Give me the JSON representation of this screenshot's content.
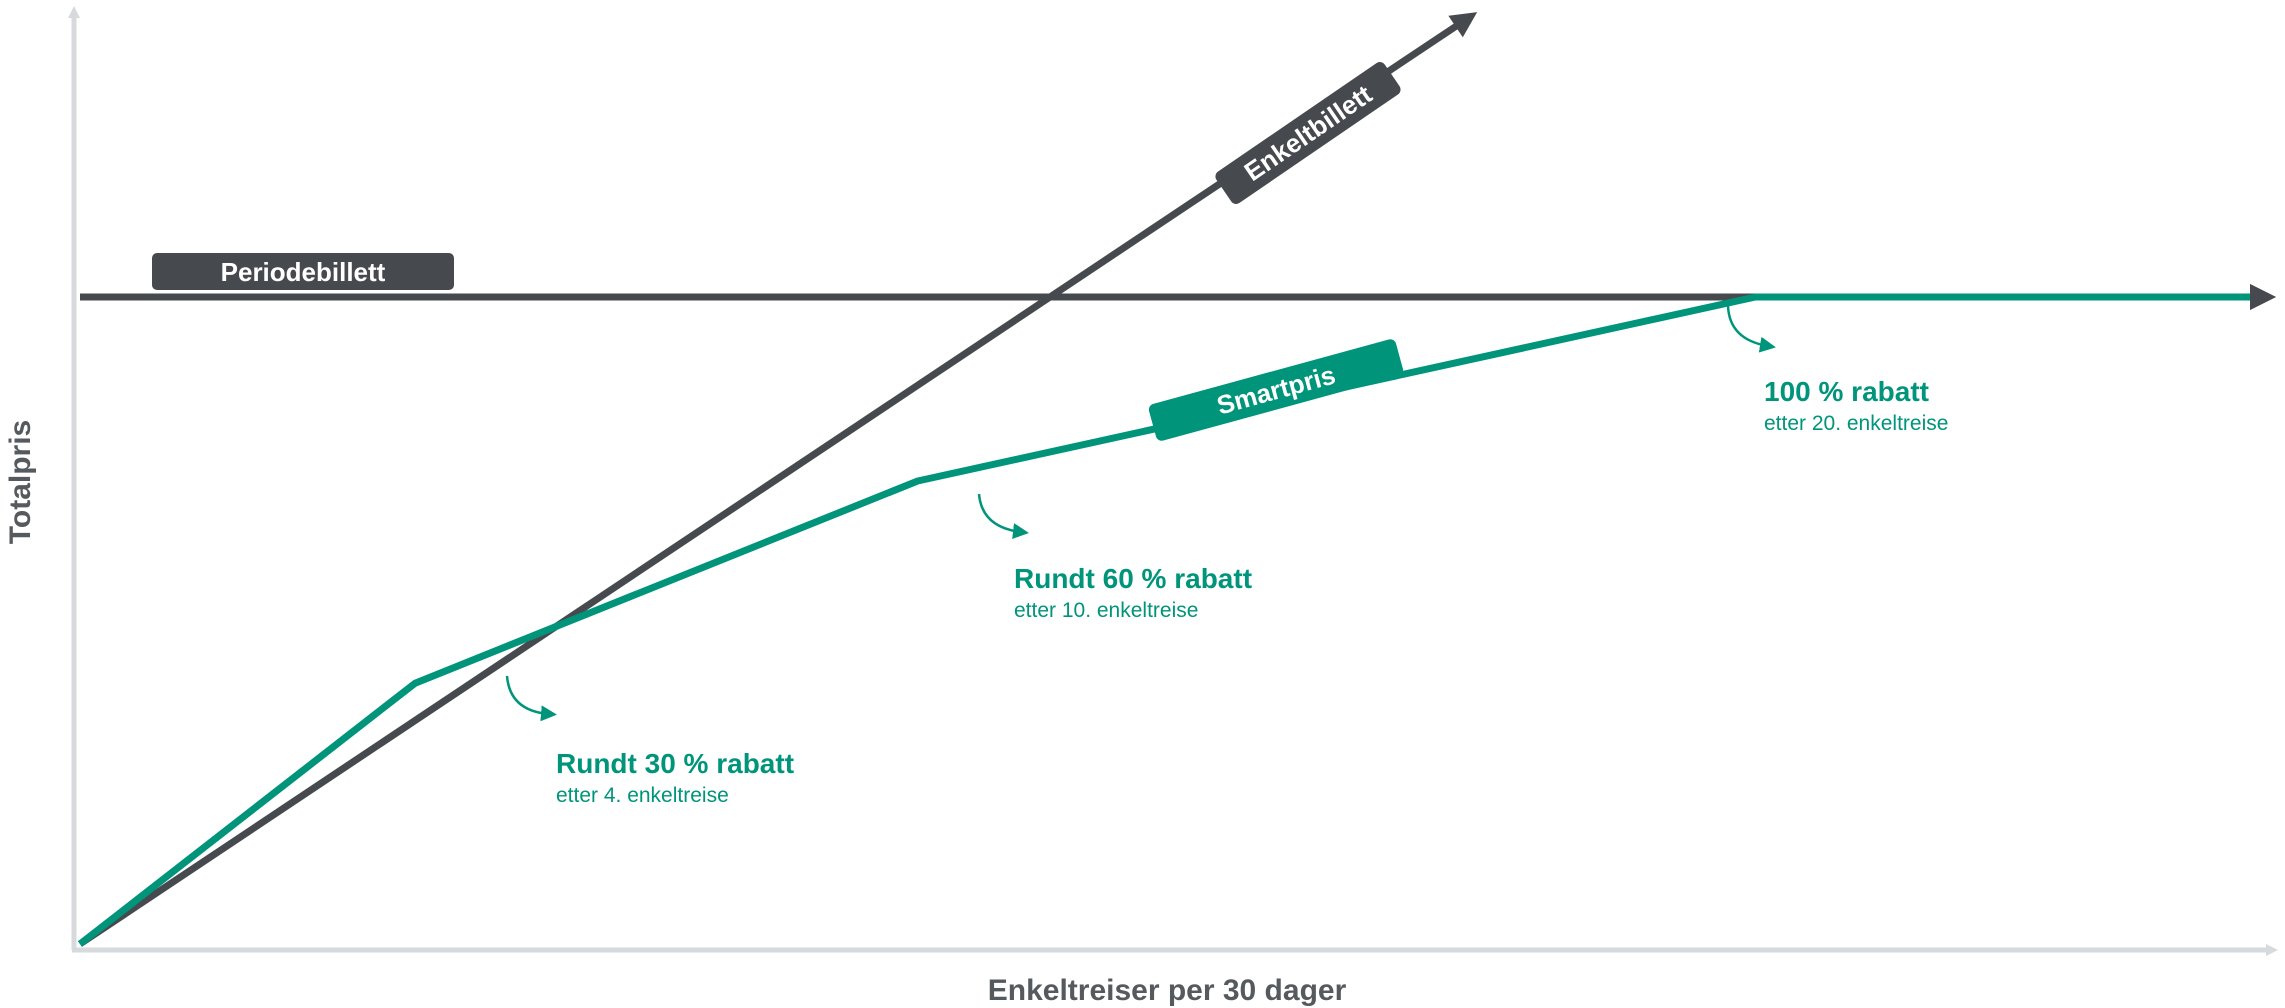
{
  "colors": {
    "axis": "#d6dadc",
    "dark": "#464a4f",
    "green": "#00957a",
    "axis_label": "#555a5f",
    "white": "#ffffff"
  },
  "chart_data": {
    "type": "line",
    "title": "",
    "xlabel": "Enkeltreiser per 30 dager",
    "ylabel": "Totalpris",
    "xlim": [
      0,
      26
    ],
    "ylim": [
      0,
      23
    ],
    "grid": false,
    "axis_arrows": true,
    "series": [
      {
        "name": "Enkeltbillett",
        "color": "#464a4f",
        "x": [
          0,
          16.5
        ],
        "y": [
          0,
          22.8
        ],
        "arrow": true
      },
      {
        "name": "Periodebillett",
        "color": "#464a4f",
        "x": [
          0,
          26
        ],
        "y": [
          16,
          16
        ],
        "arrow": true
      },
      {
        "name": "Smartpris",
        "color": "#00957a",
        "x": [
          0,
          4,
          10,
          20,
          26
        ],
        "y": [
          0,
          6.45,
          11.45,
          16,
          16
        ],
        "arrow": true
      }
    ],
    "annotations": [
      {
        "title": "Rundt 30 % rabatt",
        "subtitle": "etter 4. enkeltreise"
      },
      {
        "title": "Rundt 60 % rabatt",
        "subtitle": "etter 10. enkeltreise"
      },
      {
        "title": "100 % rabatt",
        "subtitle": "etter 20. enkeltreise"
      }
    ]
  }
}
